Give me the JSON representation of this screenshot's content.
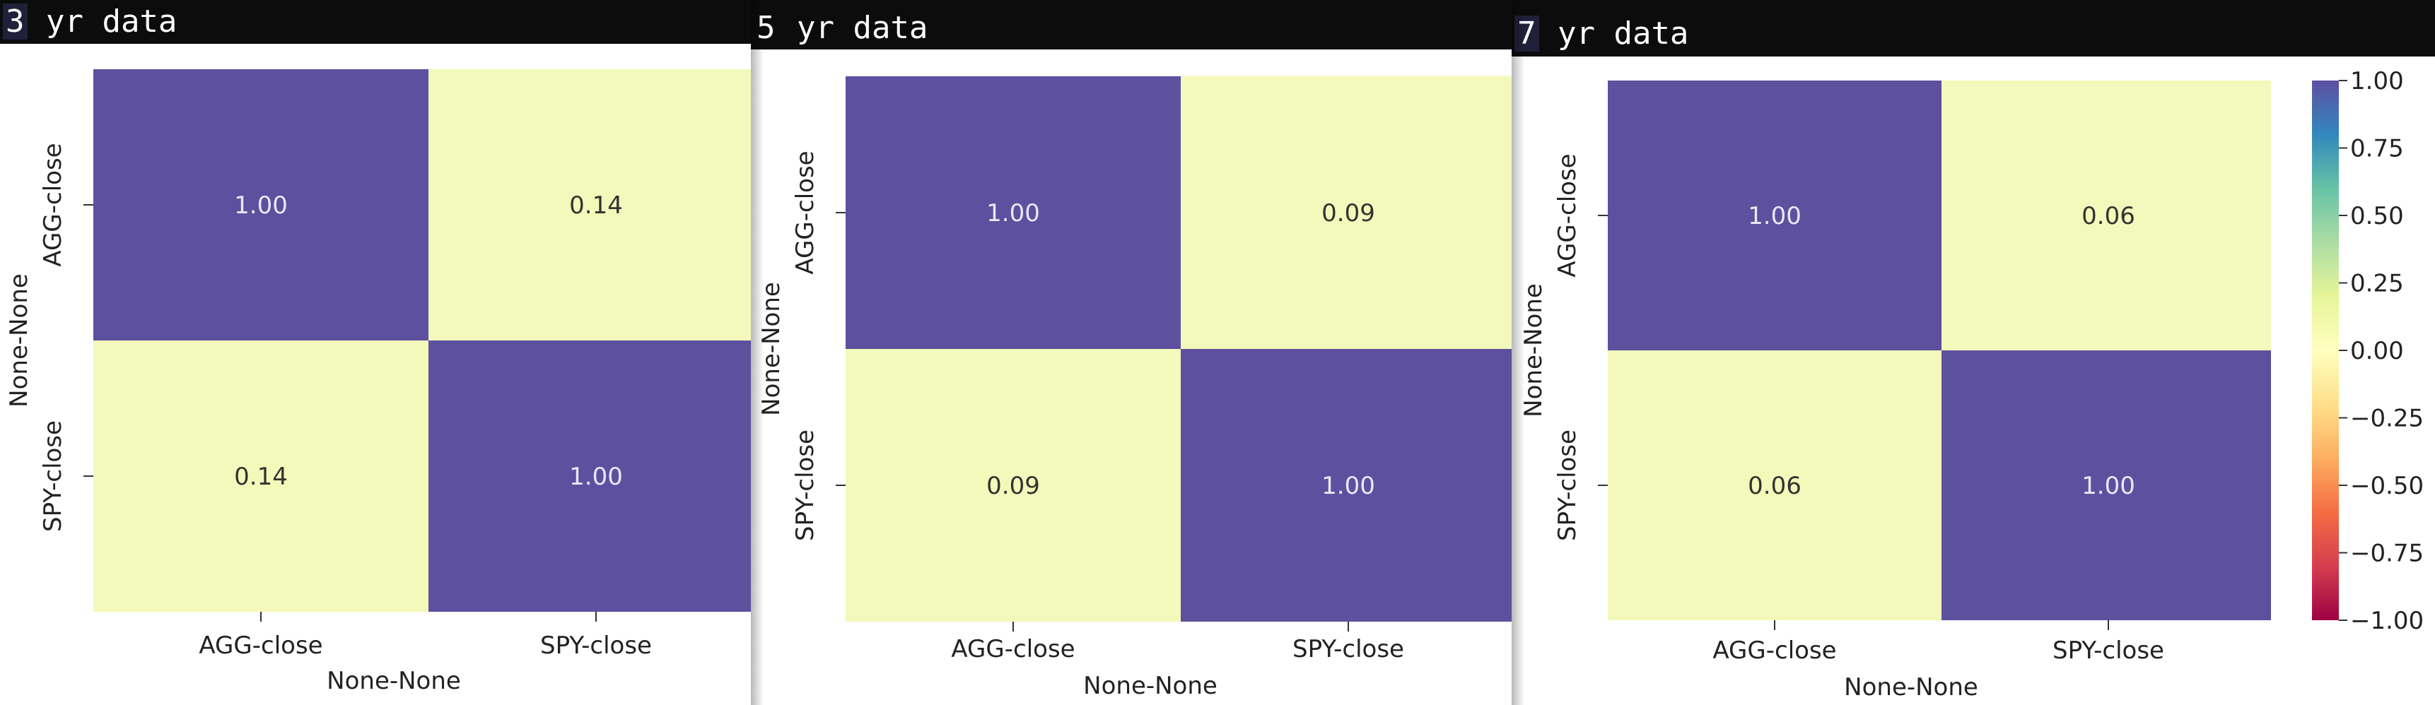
{
  "colors": {
    "high": "#5d509f",
    "low": "#f3f9ba",
    "text_on_dark": "#e8e8f4",
    "text_on_light": "#333333",
    "titlebar": "#0c0c0c"
  },
  "colorbar": {
    "ticks": [
      "1.00",
      "0.75",
      "0.50",
      "0.25",
      "0.00",
      "−0.25",
      "−0.50",
      "−0.75",
      "−1.00"
    ],
    "tick_values": [
      1,
      0.75,
      0.5,
      0.25,
      0,
      -0.25,
      -0.5,
      -0.75,
      -1
    ],
    "vmin": -1,
    "vmax": 1,
    "stops": [
      "#9e0142",
      "#d53e4f",
      "#f46d43",
      "#fdae61",
      "#fee08b",
      "#ffffbf",
      "#e6f598",
      "#abdda4",
      "#66c2a5",
      "#3288bd",
      "#5e4fa2"
    ]
  },
  "chart_data": [
    {
      "type": "heatmap",
      "title_num": "3",
      "title_rest": " yr data",
      "rows": [
        "AGG-close",
        "SPY-close"
      ],
      "cols": [
        "AGG-close",
        "SPY-close"
      ],
      "values": [
        [
          1.0,
          0.14
        ],
        [
          0.14,
          1.0
        ]
      ],
      "labels": [
        [
          "1.00",
          "0.14"
        ],
        [
          "0.14",
          "1.00"
        ]
      ],
      "xlabel": "None-None",
      "ylabel": "None-None"
    },
    {
      "type": "heatmap",
      "title_num": "5",
      "title_rest": " yr data",
      "rows": [
        "AGG-close",
        "SPY-close"
      ],
      "cols": [
        "AGG-close",
        "SPY-close"
      ],
      "values": [
        [
          1.0,
          0.09
        ],
        [
          0.09,
          1.0
        ]
      ],
      "labels": [
        [
          "1.00",
          "0.09"
        ],
        [
          "0.09",
          "1.00"
        ]
      ],
      "xlabel": "None-None",
      "ylabel": "None-None"
    },
    {
      "type": "heatmap",
      "title_num": "7",
      "title_rest": " yr data",
      "rows": [
        "AGG-close",
        "SPY-close"
      ],
      "cols": [
        "AGG-close",
        "SPY-close"
      ],
      "values": [
        [
          1.0,
          0.06
        ],
        [
          0.06,
          1.0
        ]
      ],
      "labels": [
        [
          "1.00",
          "0.06"
        ],
        [
          "0.06",
          "1.00"
        ]
      ],
      "xlabel": "None-None",
      "ylabel": "None-None"
    }
  ]
}
